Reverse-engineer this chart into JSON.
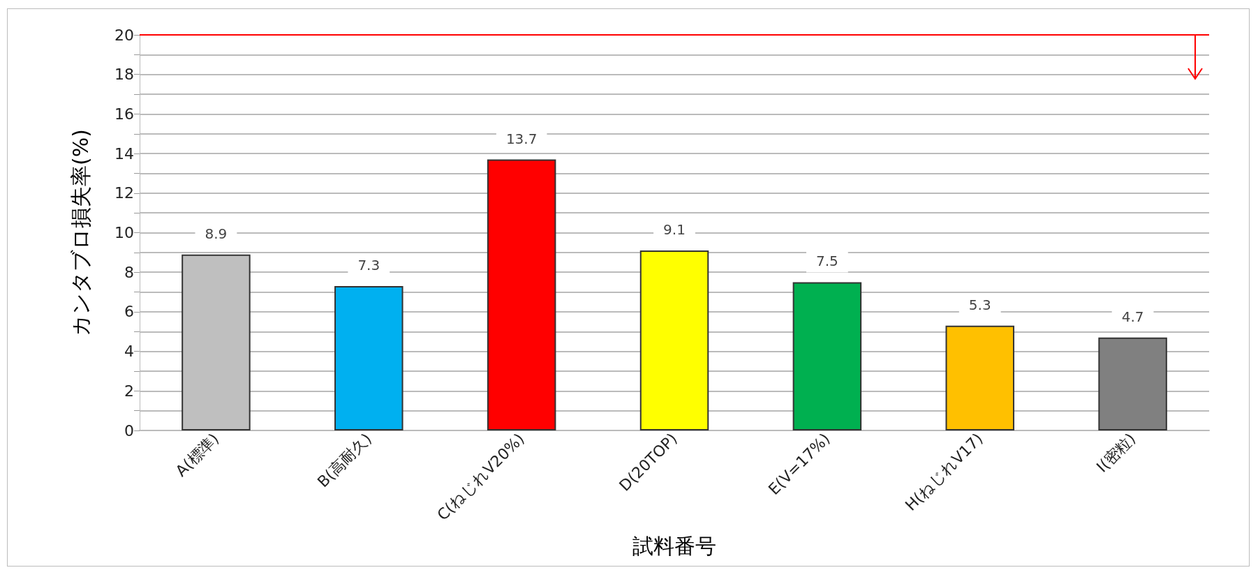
{
  "chart_data": {
    "type": "bar",
    "xlabel": "試料番号",
    "ylabel": "カンタブロ損失率(%)",
    "categories": [
      "A(標準)",
      "B(高耐久)",
      "C(ねじれV20%)",
      "D(20TOP)",
      "E(V=17%)",
      "H(ねじれV17)",
      "I(密粒)"
    ],
    "values": [
      8.9,
      7.3,
      13.7,
      9.1,
      7.5,
      5.3,
      4.7
    ],
    "colors": [
      "#bfbfbf",
      "#00b0f0",
      "#ff0000",
      "#ffff00",
      "#00b050",
      "#ffc000",
      "#808080"
    ],
    "ylim": [
      0,
      20
    ],
    "yticks": [
      0,
      {
        "value": 1,
        "label": null
      },
      2,
      {
        "value": 3,
        "label": null
      },
      4,
      {
        "value": 5,
        "label": null
      },
      6,
      {
        "value": 7,
        "label": null
      },
      8,
      {
        "value": 9,
        "label": null
      },
      10,
      {
        "value": 11,
        "label": null
      },
      12,
      {
        "value": 13,
        "label": null
      },
      14,
      {
        "value": 15,
        "label": null
      },
      16,
      {
        "value": 17,
        "label": null
      },
      18,
      {
        "value": 19,
        "label": null
      },
      20
    ],
    "grid": "y",
    "data_labels": true,
    "ref_lines": [
      {
        "axis": "y",
        "value": 20,
        "color": "#ff0000"
      }
    ]
  }
}
